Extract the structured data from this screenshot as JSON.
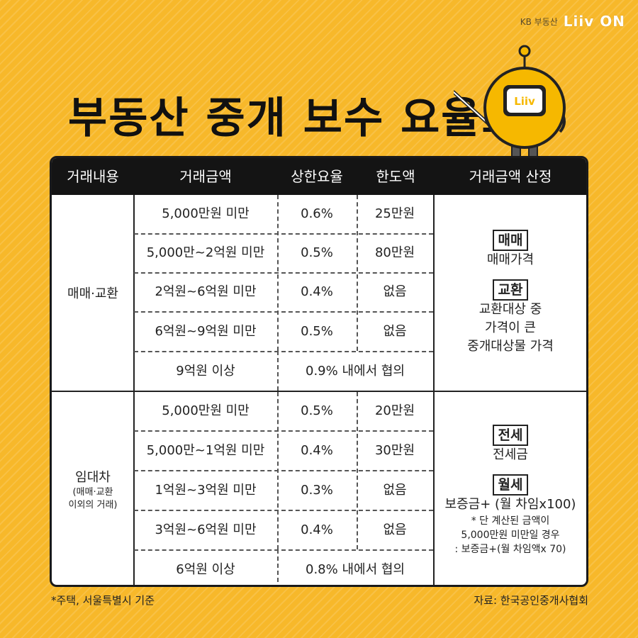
{
  "brand": {
    "small": "KB 부동산",
    "logo": "Liiv ON"
  },
  "mascot": {
    "screen_text": "Liiv"
  },
  "title": "부동산 중개 보수 요율표",
  "table": {
    "headers": [
      "거래내용",
      "거래금액",
      "상한요율",
      "한도액",
      "거래금액 산정"
    ],
    "sale": {
      "category": "매매·교환",
      "rows": [
        {
          "amount": "5,000만원 미만",
          "rate": "0.6%",
          "limit": "25만원"
        },
        {
          "amount": "5,000만~2억원 미만",
          "rate": "0.5%",
          "limit": "80만원"
        },
        {
          "amount": "2억원~6억원 미만",
          "rate": "0.4%",
          "limit": "없음"
        },
        {
          "amount": "6억원~9억원 미만",
          "rate": "0.5%",
          "limit": "없음"
        },
        {
          "amount": "9억원 이상",
          "merged": "0.9% 내에서 협의"
        }
      ],
      "note": {
        "tag1": "매매",
        "line1": "매매가격",
        "tag2": "교환",
        "line2a": "교환대상 중",
        "line2b": "가격이 큰",
        "line2c": "중개대상물 가격"
      }
    },
    "lease": {
      "category": "임대차",
      "category_sub1": "(매매·교환",
      "category_sub2": "이외의 거래)",
      "rows": [
        {
          "amount": "5,000만원 미만",
          "rate": "0.5%",
          "limit": "20만원"
        },
        {
          "amount": "5,000만~1억원 미만",
          "rate": "0.4%",
          "limit": "30만원"
        },
        {
          "amount": "1억원~3억원 미만",
          "rate": "0.3%",
          "limit": "없음"
        },
        {
          "amount": "3억원~6억원 미만",
          "rate": "0.4%",
          "limit": "없음"
        },
        {
          "amount": "6억원 이상",
          "merged": "0.8% 내에서 협의"
        }
      ],
      "note": {
        "tag1": "전세",
        "line1": "전세금",
        "tag2": "월세",
        "line2": "보증금+ (월 차임x100)",
        "small1": "* 단 계산된 금액이",
        "small2": "5,000만원 미만일 경우",
        "small3": ": 보증금+(월 차임액x 70)"
      }
    }
  },
  "footer": {
    "left": "*주택, 서울특별시 기준",
    "right": "자료: 한국공인중개사협회"
  },
  "colors": {
    "background": "#f7b82a",
    "header": "#141414",
    "mascot": "#f6b800"
  }
}
